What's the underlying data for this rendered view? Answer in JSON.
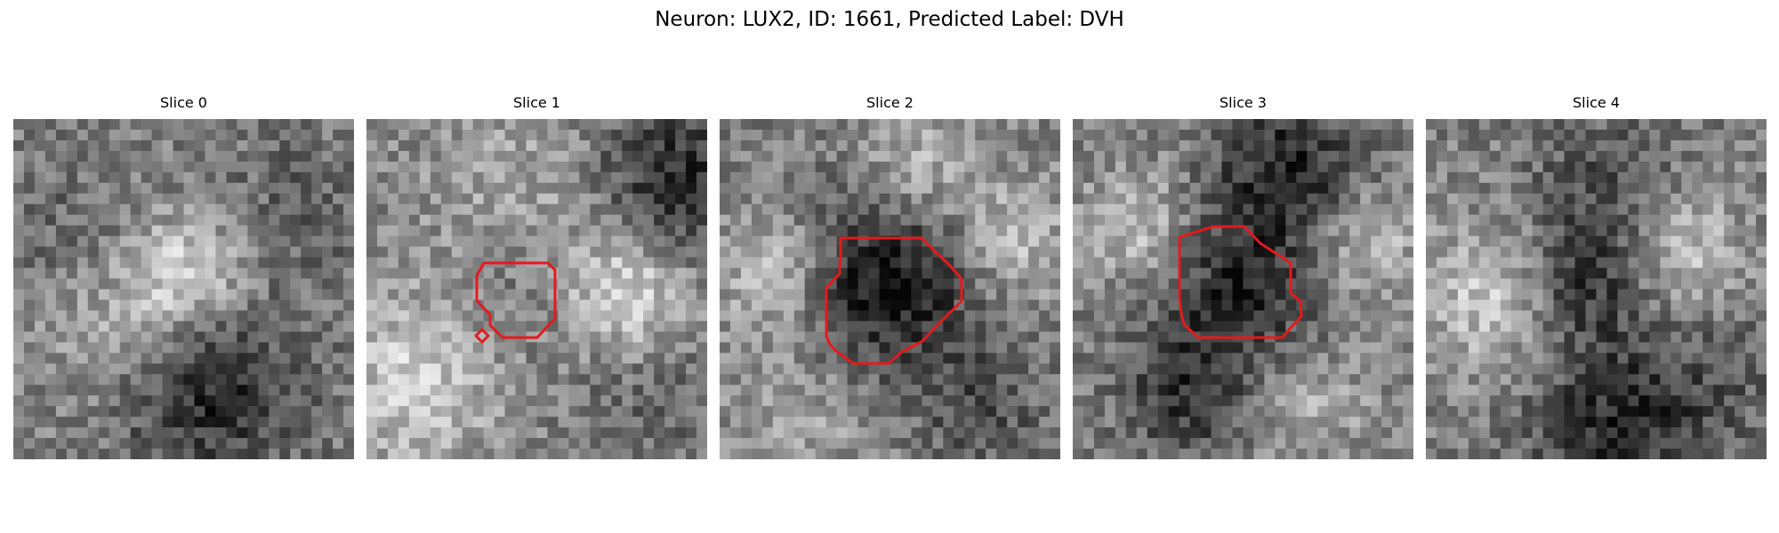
{
  "figure": {
    "title": "Neuron: LUX2, ID: 1661, Predicted Label: DVH"
  },
  "panels": [
    {
      "title": "Slice 0",
      "has_outline": false
    },
    {
      "title": "Slice 1",
      "has_outline": true
    },
    {
      "title": "Slice 2",
      "has_outline": true
    },
    {
      "title": "Slice 3",
      "has_outline": true
    },
    {
      "title": "Slice 4",
      "has_outline": false
    }
  ],
  "colors": {
    "outline": "#e41a1c",
    "background": "#ffffff"
  }
}
